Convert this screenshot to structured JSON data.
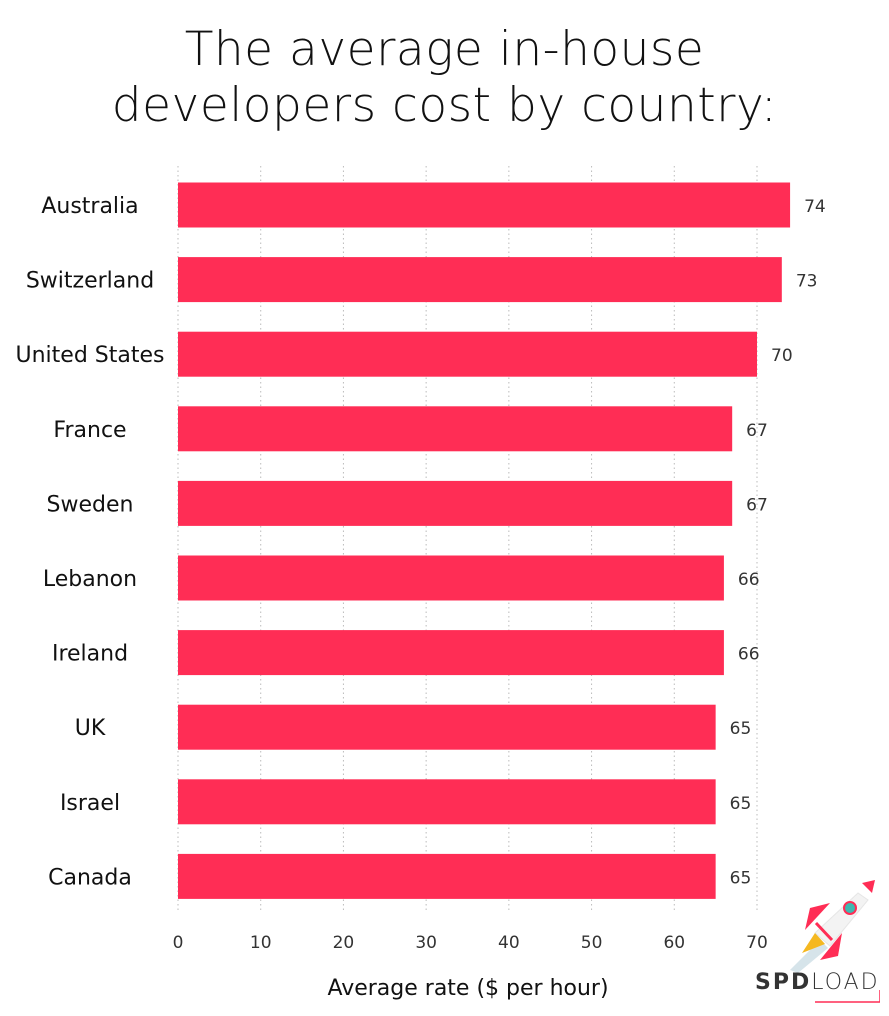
{
  "chart_data": {
    "type": "bar",
    "orientation": "horizontal",
    "title_lines": [
      "The average in-house",
      "developers cost by country:"
    ],
    "categories": [
      "Australia",
      "Switzerland",
      "United States",
      "France",
      "Sweden",
      "Lebanon",
      "Ireland",
      "UK",
      "Israel",
      "Canada"
    ],
    "values": [
      74,
      73,
      70,
      67,
      67,
      66,
      66,
      65,
      65,
      65
    ],
    "xlabel": "Average rate ($ per hour)",
    "ylabel": "",
    "xlim": [
      0,
      75
    ],
    "xticks": [
      0,
      10,
      20,
      30,
      40,
      50,
      60,
      70
    ],
    "grid": "vertical dotted",
    "bar_color": "#ff2d55",
    "data_labels": true
  },
  "logo": {
    "bold": "SPD",
    "light": "LOAD",
    "icon": "rocket-icon"
  }
}
